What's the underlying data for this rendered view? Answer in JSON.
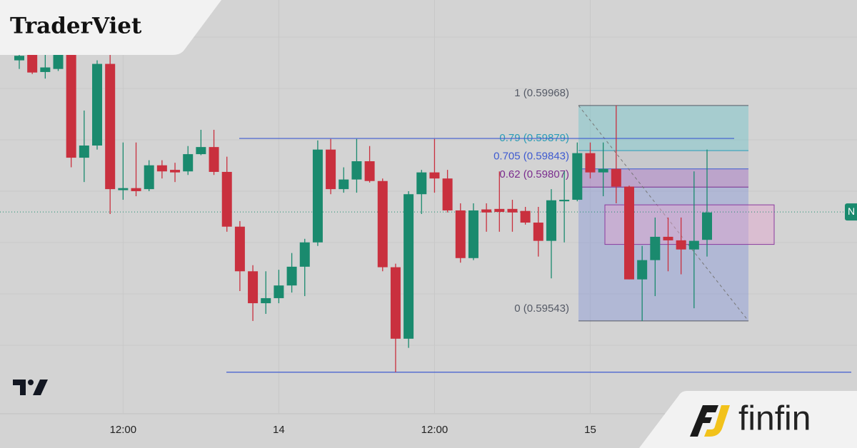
{
  "chart_data": {
    "type": "candlestick",
    "categories": [
      null,
      null,
      null,
      null,
      null,
      null,
      null,
      null,
      "12:00",
      null,
      null,
      null,
      null,
      null,
      null,
      null,
      null,
      null,
      null,
      null,
      "14",
      null,
      null,
      null,
      null,
      null,
      null,
      null,
      null,
      null,
      null,
      null,
      "12:00",
      null,
      null,
      null,
      null,
      null,
      null,
      null,
      null,
      null,
      null,
      null,
      "15",
      null,
      null,
      null,
      null,
      null,
      null,
      null,
      null,
      null
    ],
    "open": [
      0.60057,
      0.60071,
      0.60034,
      0.6004,
      0.60071,
      0.59865,
      0.59889,
      0.6005,
      0.59801,
      0.59805,
      0.59803,
      0.5985,
      0.59841,
      0.59838,
      0.59872,
      0.59886,
      0.59837,
      0.59729,
      0.59641,
      0.59578,
      0.59588,
      0.59613,
      0.5965,
      0.59698,
      0.59881,
      0.59803,
      0.59822,
      0.59858,
      0.59819,
      0.59649,
      0.59508,
      0.59793,
      0.59836,
      0.59824,
      0.59761,
      0.59667,
      0.59763,
      0.59764,
      0.59764,
      0.5976,
      0.59737,
      0.59701,
      0.59779,
      0.59782,
      0.59874,
      0.59836,
      0.59843,
      0.59808,
      0.59625,
      0.59663,
      0.59709,
      0.59702,
      0.59684,
      0.59703
    ],
    "high": [
      0.60071,
      0.60071,
      0.60071,
      0.60071,
      0.60071,
      0.59958,
      0.60057,
      0.60071,
      0.59895,
      0.59895,
      0.5986,
      0.5986,
      0.59855,
      0.59888,
      0.5992,
      0.5992,
      0.59867,
      0.5974,
      0.59653,
      0.59641,
      0.59644,
      0.59677,
      0.59705,
      0.59899,
      0.59902,
      0.59846,
      0.59902,
      0.59888,
      0.59824,
      0.59656,
      0.59799,
      0.59841,
      0.59902,
      0.59841,
      0.59775,
      0.59775,
      0.59775,
      0.59838,
      0.59782,
      0.59768,
      0.59768,
      0.59803,
      0.59838,
      0.59895,
      0.59895,
      0.59895,
      0.59968,
      0.5981,
      0.59691,
      0.59747,
      0.59747,
      0.59747,
      0.59838,
      0.59881
    ],
    "low": [
      0.6004,
      0.6003,
      0.60021,
      0.60036,
      0.59846,
      0.59817,
      0.59881,
      0.59754,
      0.59782,
      0.59789,
      0.59799,
      0.59824,
      0.59817,
      0.59831,
      0.5987,
      0.59831,
      0.59719,
      0.59602,
      0.59543,
      0.59557,
      0.59578,
      0.59599,
      0.59592,
      0.59691,
      0.59793,
      0.59796,
      0.59796,
      0.59816,
      0.59641,
      0.59442,
      0.5949,
      0.59754,
      0.59796,
      0.59757,
      0.59658,
      0.59663,
      0.59719,
      0.59719,
      0.59719,
      0.59733,
      0.5967,
      0.59627,
      0.59698,
      0.59779,
      0.59824,
      0.59789,
      0.59775,
      0.59625,
      0.59543,
      0.59592,
      0.59641,
      0.59635,
      0.59568,
      0.5967
    ],
    "close": [
      0.60066,
      0.60033,
      0.60043,
      0.60071,
      0.59865,
      0.59889,
      0.6005,
      0.59803,
      0.59805,
      0.59799,
      0.5985,
      0.59838,
      0.59836,
      0.59872,
      0.59886,
      0.59837,
      0.59729,
      0.59641,
      0.59578,
      0.59588,
      0.59613,
      0.5965,
      0.59698,
      0.59881,
      0.59803,
      0.59822,
      0.59858,
      0.59819,
      0.59649,
      0.59508,
      0.59793,
      0.59836,
      0.59824,
      0.59761,
      0.59667,
      0.59761,
      0.59757,
      0.59758,
      0.59757,
      0.59737,
      0.59701,
      0.59781,
      0.59782,
      0.59874,
      0.59836,
      0.59843,
      0.59808,
      0.59625,
      0.59663,
      0.59709,
      0.59702,
      0.59684,
      0.59701,
      0.59757
    ],
    "up_color": "#1a8a6e",
    "down_color": "#c9303e",
    "ylim": [
      0.5936,
      0.60176
    ],
    "fib_levels": [
      {
        "label": "1 (0.59968)",
        "value": 0.59968,
        "color": "#555a66"
      },
      {
        "label": "0.79 (0.59879)",
        "value": 0.59879,
        "color": "#2a9db8"
      },
      {
        "label": "0.705 (0.59843)",
        "value": 0.59843,
        "color": "#3f5bd0"
      },
      {
        "label": "0.62 (0.59807)",
        "value": 0.59807,
        "color": "#7b2d8e"
      },
      {
        "label": "0 (0.59543)",
        "value": 0.59543,
        "color": "#555a66"
      }
    ],
    "fib_band_colors": [
      "#6fc3c9",
      "#b8bcc4",
      "#a06ac2",
      "#8796d6"
    ],
    "horizontal_lines": [
      0.59903,
      0.59442
    ],
    "zone": [
      0.59772,
      0.59694
    ],
    "last_price": 0.59758,
    "price_label": "N"
  },
  "branding": {
    "top_left": "TraderViet",
    "bottom_right": "finfin"
  }
}
